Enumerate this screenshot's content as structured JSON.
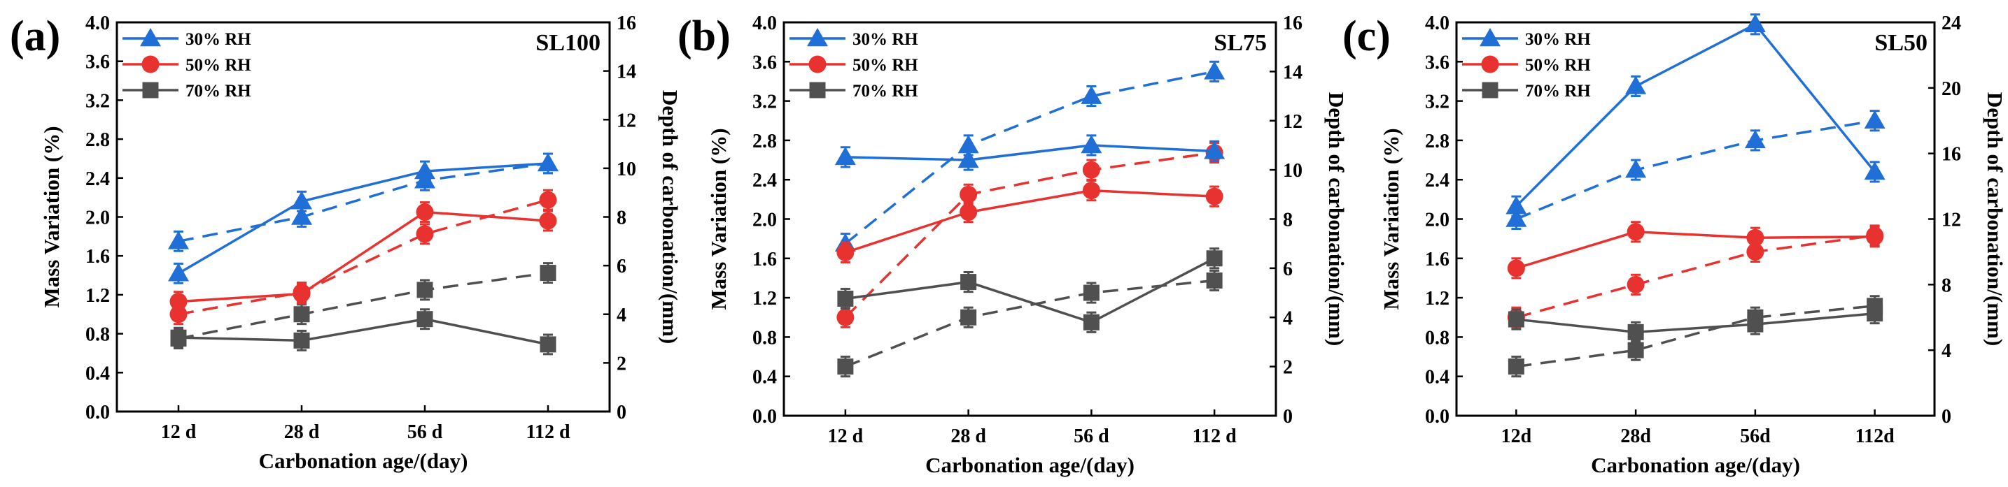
{
  "figure": {
    "axis_labels": {
      "y_left": "Mass Variation (%)",
      "y_right": "Depth of carbonation/(mm)",
      "x": "Carbonation age/(day)"
    },
    "legend": [
      "30% RH",
      "50% RH",
      "70% RH"
    ],
    "series_colors": {
      "30% RH": "#1f6fd6",
      "50% RH": "#e8322f",
      "70% RH": "#505050"
    },
    "line_styles": {
      "mass_variation": "solid",
      "depth_of_carbonation": "dashed"
    }
  },
  "chart_data": [
    {
      "type": "line",
      "panel_label": "(a)",
      "tag": "SL100",
      "categories": [
        "12 d",
        "28 d",
        "56 d",
        "112 d"
      ],
      "xlabel": "Carbonation age/(day)",
      "ylabel": "Mass Variation (%)",
      "ylabel_right": "Depth of carbonation/(mm)",
      "ylim": [
        0,
        4
      ],
      "ylim_right": [
        0,
        16
      ],
      "yticks": [
        "0.0",
        "0.4",
        "0.8",
        "1.2",
        "1.6",
        "2.0",
        "2.4",
        "2.8",
        "3.2",
        "3.6",
        "4.0"
      ],
      "yticks_right": [
        "0",
        "2",
        "4",
        "6",
        "8",
        "10",
        "12",
        "14",
        "16"
      ],
      "legend_placement": "top-left",
      "mass_series": [
        {
          "name": "30% RH",
          "values": [
            1.42,
            2.16,
            2.47,
            2.55
          ],
          "errors": [
            0.1,
            0.1,
            0.1,
            0.1
          ]
        },
        {
          "name": "50% RH",
          "values": [
            1.13,
            1.21,
            2.05,
            1.96
          ],
          "errors": [
            0.1,
            0.1,
            0.1,
            0.1
          ]
        },
        {
          "name": "70% RH",
          "values": [
            0.76,
            0.73,
            0.95,
            0.69
          ],
          "errors": [
            0.1,
            0.1,
            0.1,
            0.1
          ]
        }
      ],
      "depth_series": [
        {
          "name": "30% RH",
          "values": [
            7.0,
            8.0,
            9.5,
            10.2
          ],
          "errors": [
            0.4,
            0.4,
            0.4,
            0.4
          ]
        },
        {
          "name": "50% RH",
          "values": [
            4.0,
            4.9,
            7.3,
            8.7
          ],
          "errors": [
            0.4,
            0.4,
            0.4,
            0.4
          ]
        },
        {
          "name": "70% RH",
          "values": [
            3.0,
            4.0,
            5.0,
            5.7
          ],
          "errors": [
            0.4,
            0.4,
            0.4,
            0.4
          ]
        }
      ]
    },
    {
      "type": "line",
      "panel_label": "(b)",
      "tag": "SL75",
      "categories": [
        "12 d",
        "28 d",
        "56 d",
        "112 d"
      ],
      "xlabel": "Carbonation age/(day)",
      "ylabel": "Mass Variation (%)",
      "ylabel_right": "Depth of carbonation/(mm)",
      "ylim": [
        0,
        4
      ],
      "ylim_right": [
        0,
        16
      ],
      "yticks": [
        "0.0",
        "0.4",
        "0.8",
        "1.2",
        "1.6",
        "2.0",
        "2.4",
        "2.8",
        "3.2",
        "3.6",
        "4.0"
      ],
      "yticks_right": [
        "0",
        "2",
        "4",
        "6",
        "8",
        "10",
        "12",
        "14",
        "16"
      ],
      "legend_placement": "top-left",
      "mass_series": [
        {
          "name": "30% RH",
          "values": [
            2.63,
            2.6,
            2.75,
            2.69
          ],
          "errors": [
            0.1,
            0.1,
            0.1,
            0.1
          ]
        },
        {
          "name": "50% RH",
          "values": [
            1.66,
            2.07,
            2.29,
            2.23
          ],
          "errors": [
            0.1,
            0.1,
            0.1,
            0.1
          ]
        },
        {
          "name": "70% RH",
          "values": [
            1.19,
            1.36,
            0.95,
            1.6
          ],
          "errors": [
            0.1,
            0.1,
            0.1,
            0.1
          ]
        }
      ],
      "depth_series": [
        {
          "name": "30% RH",
          "values": [
            7.0,
            11.0,
            13.0,
            14.0
          ],
          "errors": [
            0.4,
            0.4,
            0.4,
            0.4
          ]
        },
        {
          "name": "50% RH",
          "values": [
            4.0,
            9.0,
            10.0,
            10.7
          ],
          "errors": [
            0.4,
            0.4,
            0.4,
            0.4
          ]
        },
        {
          "name": "70% RH",
          "values": [
            2.0,
            4.0,
            5.0,
            5.5
          ],
          "errors": [
            0.4,
            0.4,
            0.4,
            0.4
          ]
        }
      ]
    },
    {
      "type": "line",
      "panel_label": "(c)",
      "tag": "SL50",
      "categories": [
        "12d",
        "28d",
        "56d",
        "112d"
      ],
      "xlabel": "Carbonation age/(day)",
      "ylabel": "Mass Variation (%)",
      "ylabel_right": "Depth of carbonation/(mm)",
      "ylim": [
        0,
        4
      ],
      "ylim_right": [
        0,
        24
      ],
      "yticks": [
        "0.0",
        "0.4",
        "0.8",
        "1.2",
        "1.6",
        "2.0",
        "2.4",
        "2.8",
        "3.2",
        "3.6",
        "4.0"
      ],
      "yticks_right": [
        "0",
        "4",
        "8",
        "12",
        "16",
        "20",
        "24"
      ],
      "legend_placement": "top-left",
      "mass_series": [
        {
          "name": "30% RH",
          "values": [
            2.13,
            3.35,
            3.98,
            2.48
          ],
          "errors": [
            0.1,
            0.1,
            0.1,
            0.1
          ]
        },
        {
          "name": "50% RH",
          "values": [
            1.5,
            1.87,
            1.81,
            1.82
          ],
          "errors": [
            0.1,
            0.1,
            0.1,
            0.1
          ]
        },
        {
          "name": "70% RH",
          "values": [
            0.98,
            0.85,
            0.93,
            1.04
          ],
          "errors": [
            0.1,
            0.1,
            0.1,
            0.1
          ]
        }
      ],
      "depth_series": [
        {
          "name": "30% RH",
          "values": [
            12.0,
            15.0,
            16.8,
            18.0
          ],
          "errors": [
            0.6,
            0.6,
            0.6,
            0.6
          ]
        },
        {
          "name": "50% RH",
          "values": [
            6.0,
            8.0,
            10.0,
            11.0
          ],
          "errors": [
            0.6,
            0.6,
            0.6,
            0.6
          ]
        },
        {
          "name": "70% RH",
          "values": [
            3.0,
            4.0,
            6.0,
            6.7
          ],
          "errors": [
            0.6,
            0.6,
            0.6,
            0.6
          ]
        }
      ]
    }
  ]
}
